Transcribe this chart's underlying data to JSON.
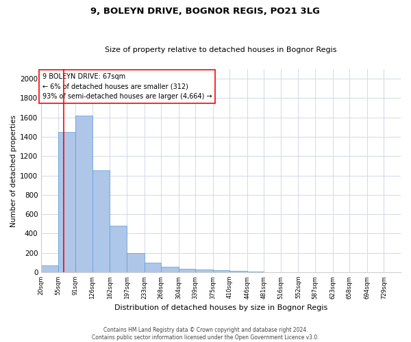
{
  "title": "9, BOLEYN DRIVE, BOGNOR REGIS, PO21 3LG",
  "subtitle": "Size of property relative to detached houses in Bognor Regis",
  "xlabel": "Distribution of detached houses by size in Bognor Regis",
  "ylabel": "Number of detached properties",
  "bin_labels": [
    "20sqm",
    "55sqm",
    "91sqm",
    "126sqm",
    "162sqm",
    "197sqm",
    "233sqm",
    "268sqm",
    "304sqm",
    "339sqm",
    "375sqm",
    "410sqm",
    "446sqm",
    "481sqm",
    "516sqm",
    "552sqm",
    "587sqm",
    "623sqm",
    "658sqm",
    "694sqm",
    "729sqm"
  ],
  "bin_edges": [
    20,
    55,
    91,
    126,
    162,
    197,
    233,
    268,
    304,
    339,
    375,
    410,
    446,
    481,
    516,
    552,
    587,
    623,
    658,
    694,
    729
  ],
  "bar_heights": [
    70,
    1450,
    1620,
    1050,
    480,
    200,
    100,
    55,
    35,
    25,
    20,
    15,
    5,
    3,
    2,
    1,
    1,
    0,
    0,
    0
  ],
  "bar_color": "#aec6e8",
  "bar_edge_color": "#5b9bd5",
  "property_size": 67,
  "vline_color": "#ff0000",
  "annotation_line1": "9 BOLEYN DRIVE: 67sqm",
  "annotation_line2": "← 6% of detached houses are smaller (312)",
  "annotation_line3": "93% of semi-detached houses are larger (4,664) →",
  "annotation_box_color": "#ffffff",
  "annotation_box_edge_color": "#ff0000",
  "ylim": [
    0,
    2100
  ],
  "yticks": [
    0,
    200,
    400,
    600,
    800,
    1000,
    1200,
    1400,
    1600,
    1800,
    2000
  ],
  "footer_text": "Contains HM Land Registry data © Crown copyright and database right 2024.\nContains public sector information licensed under the Open Government Licence v3.0.",
  "background_color": "#ffffff",
  "grid_color": "#d0d8e8",
  "title_fontsize": 9.5,
  "subtitle_fontsize": 8,
  "ylabel_fontsize": 7.5,
  "xlabel_fontsize": 8,
  "ytick_fontsize": 7.5,
  "xtick_fontsize": 6,
  "annot_fontsize": 7,
  "footer_fontsize": 5.5
}
